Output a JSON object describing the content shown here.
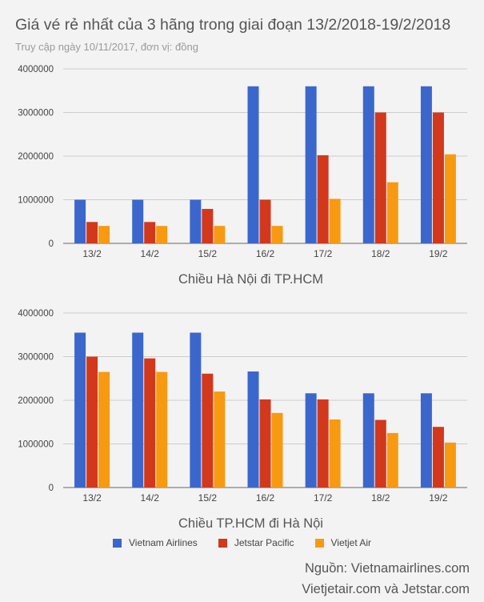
{
  "header": {
    "title": "Giá vé rẻ nhất của 3 hãng trong giai đoạn 13/2/2018-19/2/2018",
    "subtitle": "Truy cập ngày 10/11/2017, đơn vị: đồng"
  },
  "colors": {
    "Vietnam Airlines": "#3b67cc",
    "Jetstar Pacific": "#d2381c",
    "Vietjet Air": "#f79a12",
    "gridline": "#cccccc",
    "axis": "#666666"
  },
  "legend": {
    "items": [
      "Vietnam Airlines",
      "Jetstar Pacific",
      "Vietjet Air"
    ]
  },
  "source": {
    "line1": "Nguồn: Vietnamairlines.com",
    "line2": "Vietjetair.com và Jetstar.com"
  },
  "chart_data": [
    {
      "type": "bar",
      "title": "Chiều Hà Nội đi TP.HCM",
      "xlabel": "Chiều Hà Nội đi TP.HCM",
      "ylabel": "",
      "ylim": [
        0,
        4000000
      ],
      "yticks": [
        "0",
        "1000000",
        "2000000",
        "3000000",
        "4000000"
      ],
      "categories": [
        "13/2",
        "14/2",
        "15/2",
        "16/2",
        "17/2",
        "18/2",
        "19/2"
      ],
      "series": [
        {
          "name": "Vietnam Airlines",
          "values": [
            1000000,
            1000000,
            1000000,
            3600000,
            3600000,
            3600000,
            3600000
          ]
        },
        {
          "name": "Jetstar Pacific",
          "values": [
            490000,
            490000,
            790000,
            1000000,
            2020000,
            3000000,
            3000000
          ]
        },
        {
          "name": "Vietjet Air",
          "values": [
            400000,
            400000,
            400000,
            400000,
            1020000,
            1400000,
            2040000
          ]
        }
      ]
    },
    {
      "type": "bar",
      "title": "Chiều TP.HCM đi Hà Nội",
      "xlabel": "Chiều TP.HCM đi Hà Nội",
      "ylabel": "",
      "ylim": [
        0,
        4000000
      ],
      "yticks": [
        "0",
        "1000000",
        "2000000",
        "3000000",
        "4000000"
      ],
      "categories": [
        "13/2",
        "14/2",
        "15/2",
        "16/2",
        "17/2",
        "18/2",
        "19/2"
      ],
      "series": [
        {
          "name": "Vietnam Airlines",
          "values": [
            3550000,
            3550000,
            3550000,
            2660000,
            2160000,
            2160000,
            2160000
          ]
        },
        {
          "name": "Jetstar Pacific",
          "values": [
            3000000,
            2960000,
            2610000,
            2020000,
            2020000,
            1550000,
            1390000
          ]
        },
        {
          "name": "Vietjet Air",
          "values": [
            2650000,
            2650000,
            2200000,
            1710000,
            1560000,
            1250000,
            1030000
          ]
        }
      ]
    }
  ]
}
